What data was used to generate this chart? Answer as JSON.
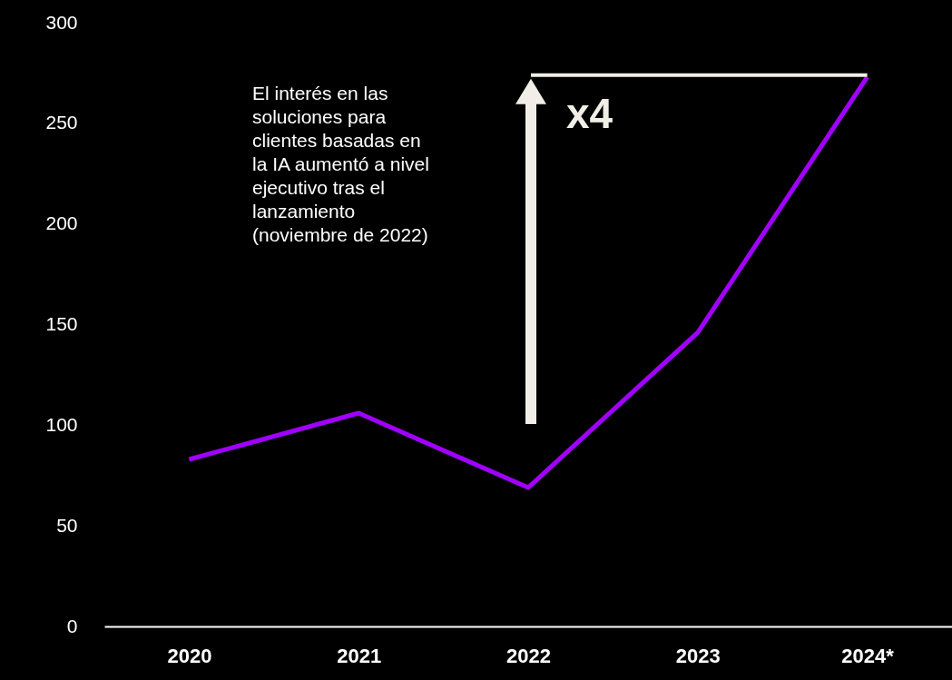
{
  "chart_data": {
    "type": "line",
    "categories": [
      "2020",
      "2021",
      "2022",
      "2023",
      "2024*"
    ],
    "series": [
      {
        "color": "#a100ff",
        "values": [
          83,
          106,
          69,
          146,
          273
        ]
      }
    ],
    "ylim": [
      0,
      300
    ],
    "yticks": [
      0,
      50,
      100,
      150,
      200,
      250,
      300
    ],
    "grid": false,
    "marker": "none",
    "line_style": "solid",
    "annotations": [
      "El interés en las soluciones para clientes basadas en la IA aumentó a nivel ejecutivo tras el lanzamiento (noviembre de 2022)",
      {
        "text": "x4",
        "x": "2024*",
        "y": 273
      }
    ]
  }
}
